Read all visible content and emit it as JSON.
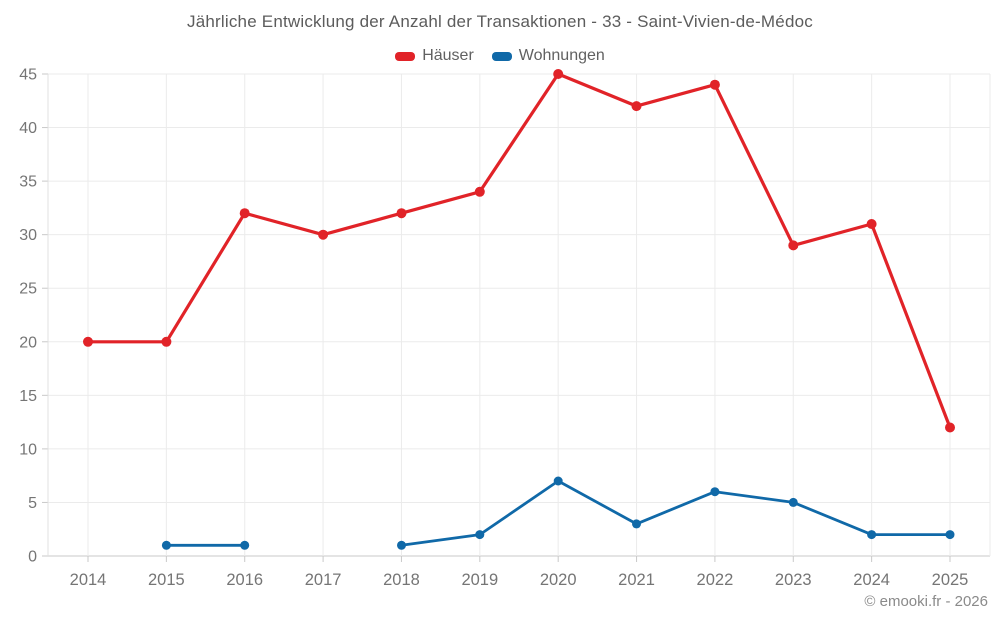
{
  "attribution": "© emooki.fr - 2026",
  "chart_data": {
    "type": "line",
    "title": "Jährliche Entwicklung der Anzahl der Transaktionen - 33 - Saint-Vivien-de-Médoc",
    "xlabel": "",
    "ylabel": "",
    "x": [
      "2014",
      "2015",
      "2016",
      "2017",
      "2018",
      "2019",
      "2020",
      "2021",
      "2022",
      "2023",
      "2024",
      "2025"
    ],
    "series": [
      {
        "name": "Häuser",
        "color": "#e12328",
        "values": [
          20,
          20,
          32,
          30,
          32,
          34,
          45,
          42,
          44,
          29,
          31,
          12
        ]
      },
      {
        "name": "Wohnungen",
        "color": "#1069a8",
        "values": [
          null,
          1,
          1,
          null,
          1,
          2,
          7,
          3,
          6,
          5,
          2,
          2
        ]
      }
    ],
    "ylim": [
      0,
      45
    ],
    "ytick_step": 5,
    "yticks": [
      0,
      5,
      10,
      15,
      20,
      25,
      30,
      35,
      40,
      45
    ],
    "grid": true,
    "legend_position": "top",
    "background_color": "#ffffff",
    "grid_color": "#ebebeb",
    "axis_color": "#c9c9c9",
    "tick_label_color": "#757575"
  }
}
